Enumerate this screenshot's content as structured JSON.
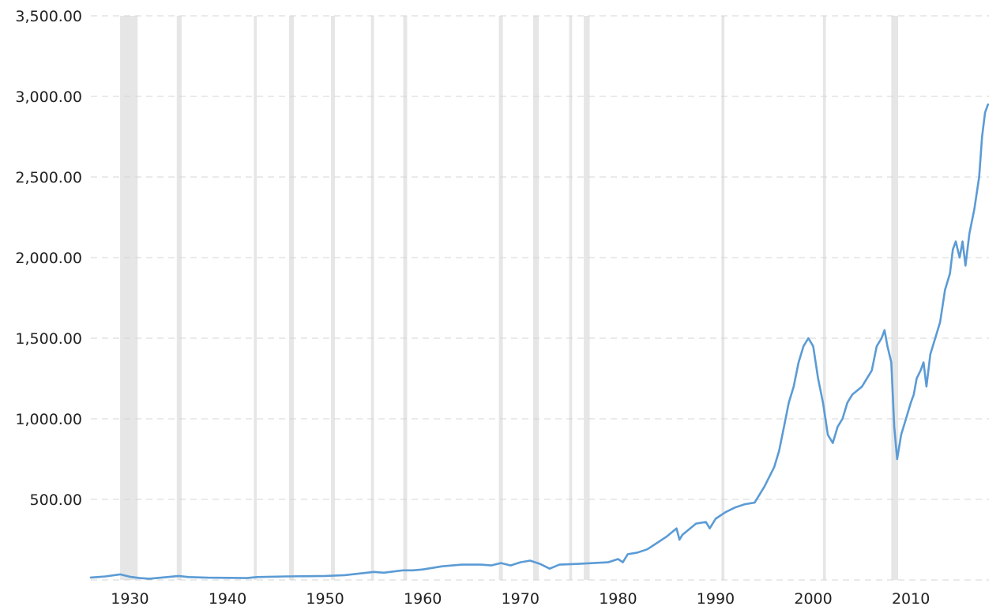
{
  "chart_data": {
    "type": "line",
    "title": "",
    "xlabel": "",
    "ylabel": "",
    "xlim": [
      1926,
      2018
    ],
    "ylim": [
      0,
      3500
    ],
    "grid": true,
    "legend": "none",
    "colors": {
      "line": "#5b9bd5",
      "recession": "#e6e6e6",
      "grid": "#d4d4d4",
      "text": "#222222"
    },
    "y_ticks": [
      {
        "value": 500,
        "label": "500.00"
      },
      {
        "value": 1000,
        "label": "1,000.00"
      },
      {
        "value": 1500,
        "label": "1,500.00"
      },
      {
        "value": 2000,
        "label": "2,000.00"
      },
      {
        "value": 2500,
        "label": "2,500.00"
      },
      {
        "value": 3000,
        "label": "3,000.00"
      },
      {
        "value": 3500,
        "label": "3,500.00"
      }
    ],
    "x_ticks": [
      {
        "value": 1930,
        "label": "1930"
      },
      {
        "value": 1940,
        "label": "1940"
      },
      {
        "value": 1950,
        "label": "1950"
      },
      {
        "value": 1960,
        "label": "1960"
      },
      {
        "value": 1970,
        "label": "1970"
      },
      {
        "value": 1980,
        "label": "1980"
      },
      {
        "value": 1990,
        "label": "1990"
      },
      {
        "value": 2000,
        "label": "2000"
      },
      {
        "value": 2010,
        "label": "2010"
      }
    ],
    "recessions": [
      [
        1929.0,
        1930.8
      ],
      [
        1934.8,
        1935.3
      ],
      [
        1942.7,
        1943.0
      ],
      [
        1946.3,
        1946.8
      ],
      [
        1950.6,
        1951.0
      ],
      [
        1954.7,
        1955.0
      ],
      [
        1958.0,
        1958.4
      ],
      [
        1967.8,
        1968.2
      ],
      [
        1971.3,
        1971.9
      ],
      [
        1975.0,
        1975.3
      ],
      [
        1976.5,
        1977.1
      ],
      [
        1990.6,
        1990.9
      ],
      [
        2001.0,
        2001.3
      ],
      [
        2008.0,
        2008.7
      ]
    ],
    "series": [
      {
        "x": [
          1926.0,
          1927.5,
          1929.0,
          1930.0,
          1931.0,
          1932.0,
          1935.0,
          1936.0,
          1938.0,
          1942.0,
          1943.0,
          1946.0,
          1950.0,
          1952.0,
          1955.0,
          1956.0,
          1958.0,
          1959.0,
          1960.0,
          1962.0,
          1964.0,
          1966.0,
          1967.0,
          1968.0,
          1969.0,
          1970.0,
          1971.0,
          1972.0,
          1973.0,
          1974.0,
          1976.0,
          1979.0,
          1980.0,
          1980.5,
          1981.0,
          1982.0,
          1983.0,
          1984.0,
          1985.0,
          1986.0,
          1986.3,
          1986.6,
          1987.0,
          1988.0,
          1989.0,
          1989.4,
          1990.0,
          1991.0,
          1992.0,
          1993.0,
          1994.0,
          1995.0,
          1996.0,
          1996.5,
          1997.0,
          1997.5,
          1998.0,
          1998.5,
          1999.0,
          1999.5,
          2000.0,
          2000.5,
          2001.0,
          2001.5,
          2002.0,
          2002.5,
          2003.0,
          2003.5,
          2004.0,
          2005.0,
          2006.0,
          2006.5,
          2007.0,
          2007.3,
          2007.6,
          2008.0,
          2008.3,
          2008.6,
          2009.0,
          2009.5,
          2010.0,
          2010.3,
          2010.6,
          2011.0,
          2011.3,
          2011.6,
          2012.0,
          2013.0,
          2013.5,
          2014.0,
          2014.3,
          2014.6,
          2015.0,
          2015.3,
          2015.6,
          2016.0,
          2016.5,
          2017.0,
          2017.3,
          2017.6,
          2017.9
        ],
        "y": [
          15,
          22,
          35,
          20,
          12,
          8,
          25,
          18,
          14,
          12,
          18,
          22,
          25,
          30,
          50,
          45,
          60,
          60,
          65,
          85,
          95,
          95,
          90,
          105,
          90,
          110,
          120,
          100,
          70,
          95,
          100,
          110,
          130,
          110,
          160,
          170,
          190,
          230,
          270,
          320,
          250,
          280,
          300,
          350,
          360,
          320,
          380,
          420,
          450,
          470,
          480,
          580,
          700,
          800,
          950,
          1100,
          1200,
          1350,
          1450,
          1500,
          1450,
          1250,
          1100,
          900,
          850,
          950,
          1000,
          1100,
          1150,
          1200,
          1300,
          1450,
          1500,
          1550,
          1450,
          1350,
          950,
          750,
          900,
          1000,
          1100,
          1150,
          1250,
          1300,
          1350,
          1200,
          1400,
          1600,
          1800,
          1900,
          2050,
          2100,
          2000,
          2100,
          1950,
          2150,
          2300,
          2500,
          2750,
          2900,
          2950
        ]
      }
    ]
  }
}
